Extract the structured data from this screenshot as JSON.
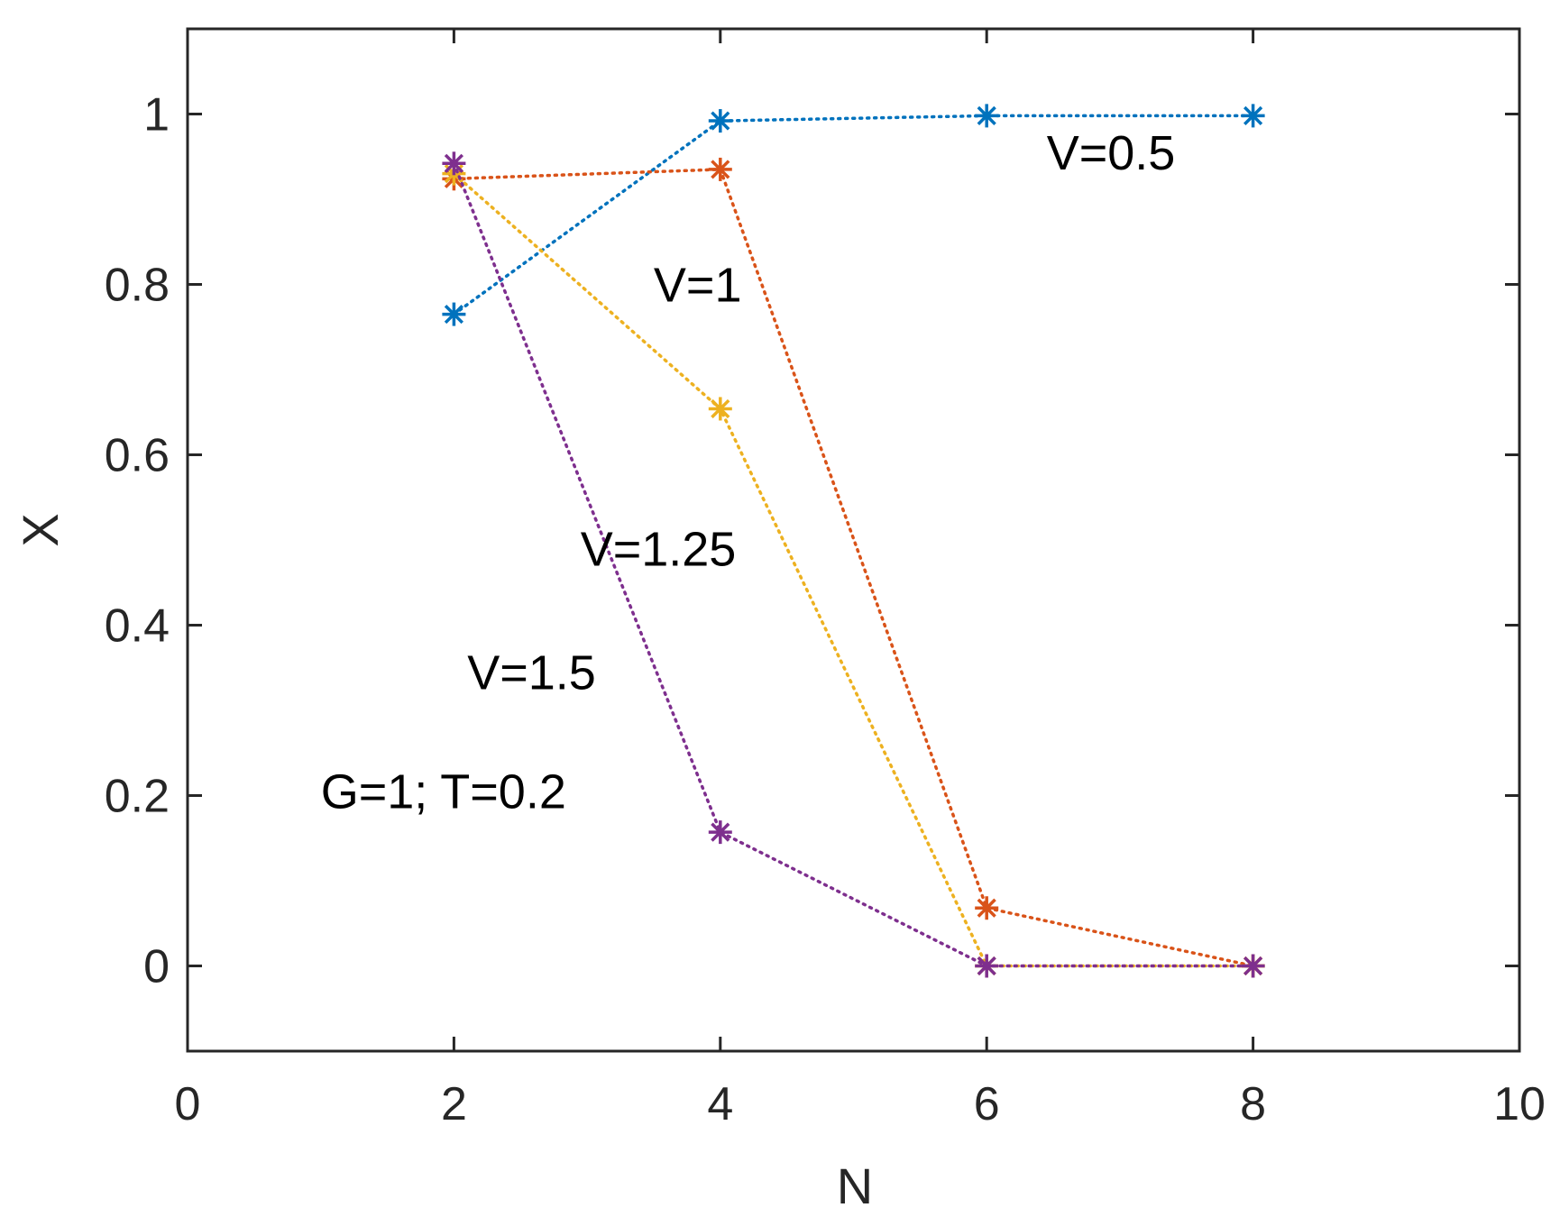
{
  "chart_data": {
    "type": "line",
    "title": "",
    "xlabel": "N",
    "ylabel": "X",
    "xlim": [
      0,
      10
    ],
    "ylim": [
      -0.1,
      1.1
    ],
    "xticks": [
      0,
      2,
      4,
      6,
      8,
      10
    ],
    "yticks": [
      0,
      0.2,
      0.4,
      0.6,
      0.8,
      1
    ],
    "xtick_labels": [
      "0",
      "2",
      "4",
      "6",
      "8",
      "10"
    ],
    "ytick_labels": [
      "0",
      "0.2",
      "0.4",
      "0.6",
      "0.8",
      "1"
    ],
    "grid": false,
    "line_style": "dotted",
    "marker": "asterisk",
    "series": [
      {
        "name": "V=0.5",
        "color": "#0072BD",
        "x": [
          2,
          4,
          6,
          8
        ],
        "y": [
          0.765,
          0.992,
          0.998,
          0.998
        ]
      },
      {
        "name": "V=1",
        "color": "#D95319",
        "x": [
          2,
          4,
          6,
          8
        ],
        "y": [
          0.924,
          0.935,
          0.068,
          0.0
        ]
      },
      {
        "name": "V=1.25",
        "color": "#EDB120",
        "x": [
          2,
          4,
          6,
          8
        ],
        "y": [
          0.93,
          0.654,
          0.0,
          0.0
        ]
      },
      {
        "name": "V=1.5",
        "color": "#7E2F8E",
        "x": [
          2,
          4,
          6,
          8
        ],
        "y": [
          0.942,
          0.157,
          0.0,
          0.0
        ]
      }
    ],
    "annotations": [
      {
        "text": "V=0.5",
        "x": 6.45,
        "y": 0.935
      },
      {
        "text": "V=1",
        "x": 3.5,
        "y": 0.78
      },
      {
        "text": "V=1.25",
        "x": 2.95,
        "y": 0.47
      },
      {
        "text": "V=1.5",
        "x": 2.1,
        "y": 0.325
      },
      {
        "text": "G=1; T=0.2",
        "x": 1.0,
        "y": 0.185
      }
    ]
  }
}
